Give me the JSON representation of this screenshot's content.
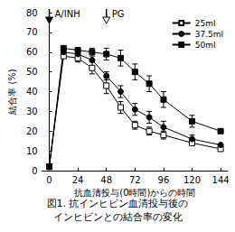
{
  "chart_data": {
    "type": "line",
    "caption": [
      "図1. 抗インヒビン血清投与後の",
      "インヒビンとの結合率の変化"
    ],
    "x_label": "抗血清投与(0時間)からの時間",
    "y_label": "結合率 (%)",
    "xlim": [
      -6,
      150
    ],
    "xticks": [
      0,
      24,
      48,
      72,
      96,
      120,
      144
    ],
    "ylim": [
      0,
      80
    ],
    "yticks": [
      0,
      10,
      20,
      30,
      40,
      50,
      60,
      70,
      80
    ],
    "grid": false,
    "legend": "top-right",
    "annotations": [
      {
        "text": "A/INH",
        "x": 0
      },
      {
        "text": "PG",
        "x": 48
      }
    ],
    "x": [
      0,
      12,
      24,
      36,
      48,
      60,
      72,
      84,
      96,
      120,
      144
    ],
    "series": [
      {
        "name": "25ml",
        "color": "#000000",
        "marker": "open_square",
        "values": [
          2,
          58,
          57,
          52,
          43,
          32,
          23,
          20,
          18,
          14,
          11
        ],
        "errors": [
          null,
          null,
          2,
          3,
          4,
          3,
          2,
          2,
          2,
          null,
          null
        ]
      },
      {
        "name": "37.5ml",
        "color": "#000000",
        "marker": "circle",
        "values": [
          2,
          60,
          59,
          56,
          48,
          40,
          31,
          27,
          22,
          16,
          13
        ],
        "errors": [
          null,
          null,
          null,
          null,
          2,
          3,
          3,
          3,
          3,
          2,
          null
        ]
      },
      {
        "name": "50ml",
        "color": "#000000",
        "marker": "square",
        "values": [
          2,
          62,
          61,
          60,
          59,
          57,
          50,
          44,
          36,
          25,
          20
        ],
        "errors": [
          null,
          null,
          null,
          2,
          3,
          4,
          4,
          4,
          4,
          3,
          null
        ]
      }
    ]
  }
}
